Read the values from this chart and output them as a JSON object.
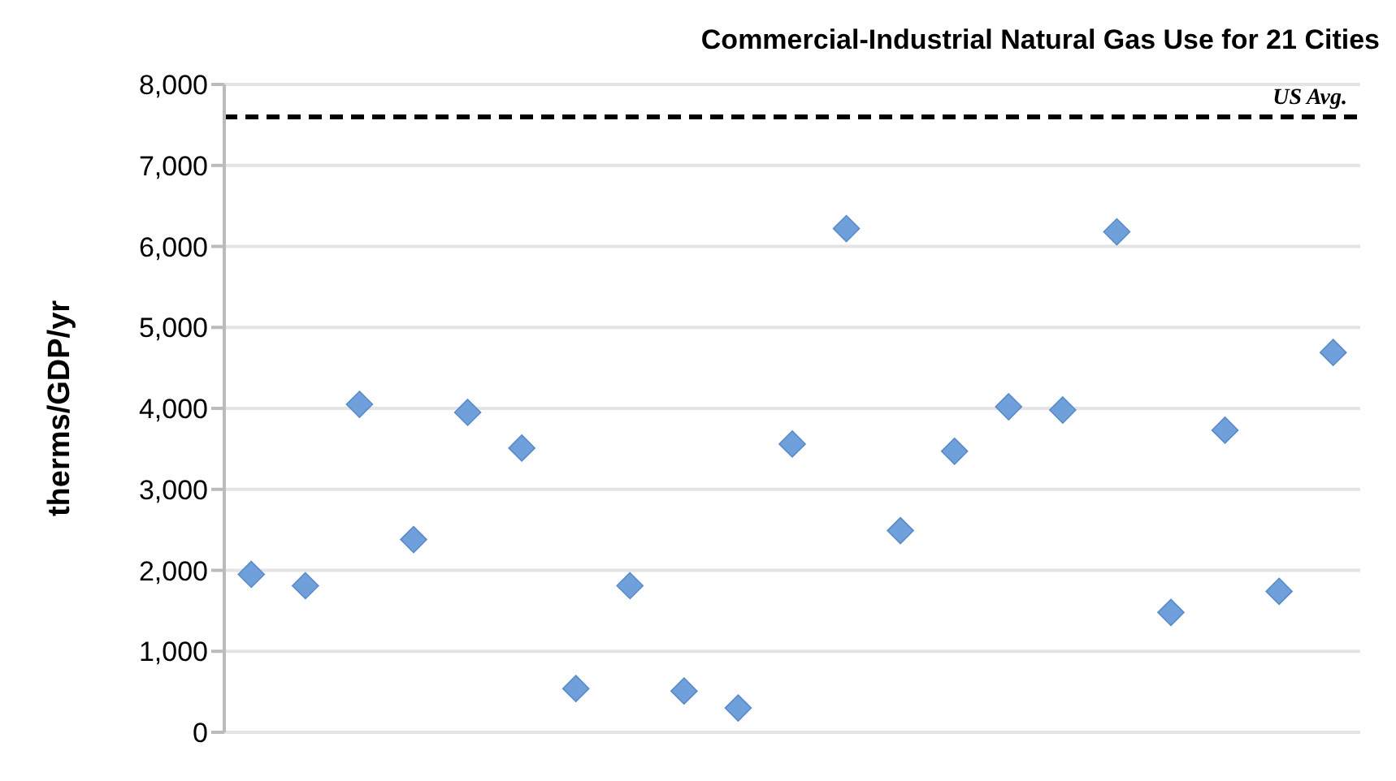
{
  "chart_data": {
    "type": "scatter",
    "title": "Commercial-Industrial Natural Gas Use for 21 Cities",
    "ylabel": "therms/GDP/yr",
    "categories": [
      null,
      null,
      null,
      null,
      null,
      null,
      null,
      null,
      null,
      null,
      null,
      null,
      null,
      null,
      null,
      null,
      null,
      null,
      null,
      null,
      null
    ],
    "series": [
      {
        "color": "#6fa0dc",
        "values": [
          1950,
          1810,
          4050,
          2380,
          3950,
          3510,
          540,
          1810,
          510,
          300,
          3560,
          6220,
          2490,
          3470,
          4020,
          3980,
          6180,
          1480,
          3730,
          1740,
          4690
        ]
      }
    ],
    "ylim": [
      0,
      8000
    ],
    "yticks": [
      {
        "value": 0,
        "label": "0"
      },
      {
        "value": 1000,
        "label": "1,000"
      },
      {
        "value": 2000,
        "label": "2,000"
      },
      {
        "value": 3000,
        "label": "3,000"
      },
      {
        "value": 4000,
        "label": "4,000"
      },
      {
        "value": 5000,
        "label": "5,000"
      },
      {
        "value": 6000,
        "label": "6,000"
      },
      {
        "value": 7000,
        "label": "7,000"
      },
      {
        "value": 8000,
        "label": "8,000"
      }
    ],
    "ref_lines": [
      {
        "axis": "y",
        "value": 7600,
        "label": "US Avg.",
        "color": "#000000",
        "line_style": "dashed"
      }
    ],
    "grid": "y",
    "legend": false,
    "marker": "diamond",
    "tick_labels": "y"
  }
}
